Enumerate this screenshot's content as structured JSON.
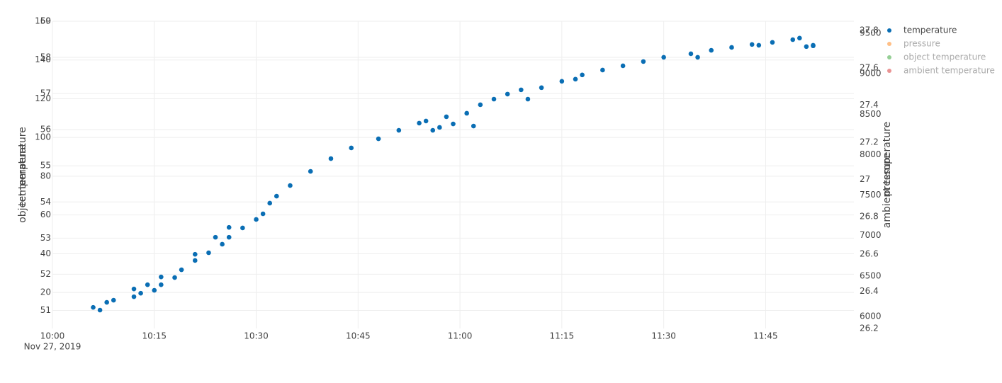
{
  "chart_data": {
    "type": "scatter",
    "x_date_label": "Nov 27, 2019",
    "xlim": [
      "2019-11-27 10:00",
      "2019-11-27 11:58"
    ],
    "xticks": [
      {
        "value": "2019-11-27 10:00",
        "label": "10:00"
      },
      {
        "value": "2019-11-27 10:15",
        "label": "10:15"
      },
      {
        "value": "2019-11-27 10:30",
        "label": "10:30"
      },
      {
        "value": "2019-11-27 10:45",
        "label": "10:45"
      },
      {
        "value": "2019-11-27 11:00",
        "label": "11:00"
      },
      {
        "value": "2019-11-27 11:15",
        "label": "11:15"
      },
      {
        "value": "2019-11-27 11:30",
        "label": "11:30"
      },
      {
        "value": "2019-11-27 11:45",
        "label": "11:45"
      }
    ],
    "grid": true,
    "axes": [
      {
        "id": "y",
        "side": "left",
        "title": "temperature",
        "ylim": [
          1.4,
          160
        ],
        "yticks": [
          20,
          40,
          60,
          80,
          100,
          120,
          140,
          160
        ]
      },
      {
        "id": "y2",
        "side": "left",
        "title": "object temperature",
        "ylim": [
          50.5,
          59
        ],
        "yticks": [
          51,
          52,
          53,
          54,
          55,
          56,
          57,
          58,
          59
        ]
      },
      {
        "id": "y3",
        "side": "right",
        "title": "pressure",
        "ylim": [
          5850,
          9650
        ],
        "yticks": [
          6000,
          6500,
          7000,
          7500,
          8000,
          8500,
          9000,
          9500
        ]
      },
      {
        "id": "y4",
        "side": "right",
        "title": "ambient temperature",
        "ylim": [
          26.2,
          27.85
        ],
        "yticks": [
          26.2,
          26.4,
          26.6,
          26.8,
          27,
          27.2,
          27.4,
          27.6,
          27.8
        ]
      }
    ],
    "series": [
      {
        "name": "temperature",
        "color": "#0a6eb4",
        "axis": "y",
        "visible": true,
        "x": [
          "2019-11-27 10:06",
          "2019-11-27 10:07",
          "2019-11-27 10:08",
          "2019-11-27 10:09",
          "2019-11-27 10:12",
          "2019-11-27 10:12",
          "2019-11-27 10:13",
          "2019-11-27 10:14",
          "2019-11-27 10:15",
          "2019-11-27 10:16",
          "2019-11-27 10:16",
          "2019-11-27 10:18",
          "2019-11-27 10:19",
          "2019-11-27 10:21",
          "2019-11-27 10:21",
          "2019-11-27 10:23",
          "2019-11-27 10:24",
          "2019-11-27 10:25",
          "2019-11-27 10:26",
          "2019-11-27 10:26",
          "2019-11-27 10:28",
          "2019-11-27 10:30",
          "2019-11-27 10:31",
          "2019-11-27 10:32",
          "2019-11-27 10:33",
          "2019-11-27 10:35",
          "2019-11-27 10:38",
          "2019-11-27 10:41",
          "2019-11-27 10:44",
          "2019-11-27 10:48",
          "2019-11-27 10:51",
          "2019-11-27 10:54",
          "2019-11-27 10:55",
          "2019-11-27 10:56",
          "2019-11-27 10:57",
          "2019-11-27 10:58",
          "2019-11-27 10:59",
          "2019-11-27 11:01",
          "2019-11-27 11:02",
          "2019-11-27 11:03",
          "2019-11-27 11:05",
          "2019-11-27 11:07",
          "2019-11-27 11:09",
          "2019-11-27 11:10",
          "2019-11-27 11:12",
          "2019-11-27 11:15",
          "2019-11-27 11:17",
          "2019-11-27 11:18",
          "2019-11-27 11:21",
          "2019-11-27 11:24",
          "2019-11-27 11:27",
          "2019-11-27 11:30",
          "2019-11-27 11:34",
          "2019-11-27 11:35",
          "2019-11-27 11:37",
          "2019-11-27 11:40",
          "2019-11-27 11:43",
          "2019-11-27 11:44",
          "2019-11-27 11:46",
          "2019-11-27 11:49",
          "2019-11-27 11:50",
          "2019-11-27 11:51",
          "2019-11-27 11:52",
          "2019-11-27 11:52"
        ],
        "values": [
          12.3,
          10.9,
          14.9,
          16.0,
          17.8,
          21.8,
          19.6,
          24.0,
          21.1,
          24.0,
          28.0,
          27.7,
          31.7,
          36.5,
          39.7,
          40.5,
          48.5,
          44.9,
          48.5,
          53.6,
          53.3,
          57.7,
          60.6,
          66.1,
          69.7,
          75.2,
          82.5,
          89.1,
          94.6,
          99.3,
          103.7,
          107.4,
          108.5,
          103.7,
          105.2,
          110.7,
          107.0,
          112.5,
          105.9,
          116.9,
          119.8,
          122.4,
          124.6,
          119.8,
          125.7,
          129.0,
          130.1,
          132.3,
          134.8,
          137.0,
          139.2,
          141.4,
          143.2,
          141.4,
          145.0,
          146.5,
          148.0,
          147.6,
          149.1,
          150.5,
          151.3,
          146.9,
          147.3,
          147.6
        ]
      },
      {
        "name": "pressure",
        "color": "#ff7f0e",
        "axis": "y3",
        "visible": "legendonly"
      },
      {
        "name": "object temperature",
        "color": "#2ca02c",
        "axis": "y2",
        "visible": "legendonly"
      },
      {
        "name": "ambient temperature",
        "color": "#d62728",
        "axis": "y4",
        "visible": "legendonly"
      }
    ]
  }
}
